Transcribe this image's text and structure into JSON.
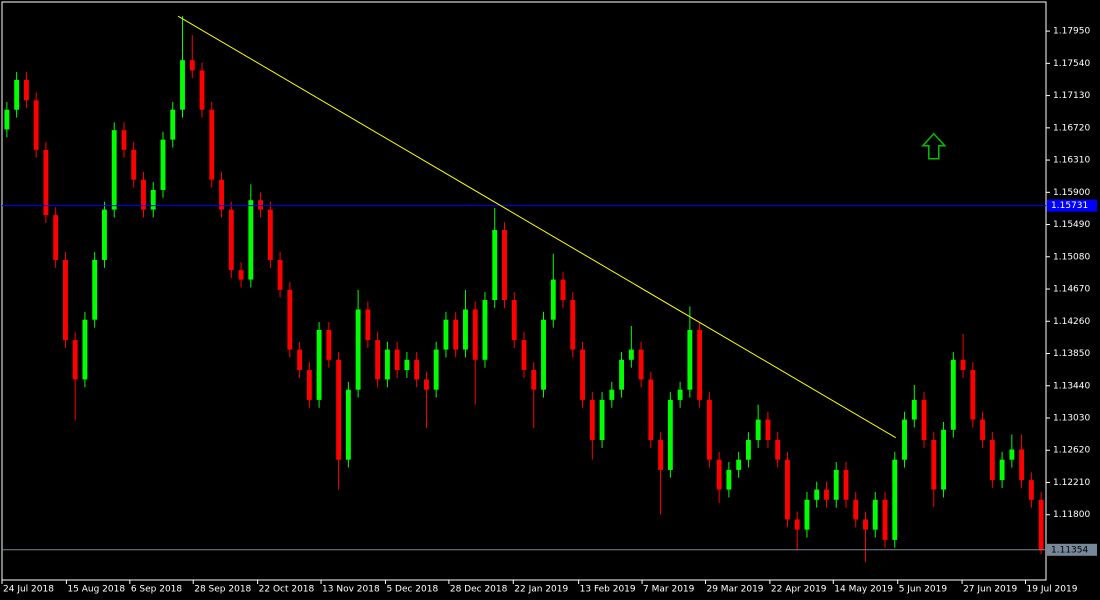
{
  "chart_data": {
    "type": "candlestick",
    "open": [
      1.167,
      1.1695,
      1.1733,
      1.1707,
      1.1644,
      1.1561,
      1.1504,
      1.1402,
      1.1352,
      1.1428,
      1.1504,
      1.1568,
      1.1669,
      1.1644,
      1.1606,
      1.1568,
      1.1593,
      1.1657,
      1.1695,
      1.1758,
      1.1745,
      1.1695,
      1.1606,
      1.1568,
      1.1491,
      1.1479,
      1.158,
      1.1568,
      1.1504,
      1.1466,
      1.139,
      1.1364,
      1.1326,
      1.1415,
      1.1377,
      1.125,
      1.1339,
      1.1441,
      1.1402,
      1.1352,
      1.139,
      1.1364,
      1.1377,
      1.1352,
      1.1339,
      1.139,
      1.1428,
      1.139,
      1.1441,
      1.1377,
      1.1453,
      1.1542,
      1.1453,
      1.1402,
      1.1364,
      1.1339,
      1.1428,
      1.1479,
      1.1453,
      1.139,
      1.1326,
      1.1275,
      1.1326,
      1.1339,
      1.1377,
      1.139,
      1.1352,
      1.1275,
      1.1237,
      1.1326,
      1.1339,
      1.1415,
      1.1326,
      1.125,
      1.1212,
      1.1237,
      1.125,
      1.1275,
      1.1301,
      1.1275,
      1.125,
      1.1174,
      1.1161,
      1.1199,
      1.1212,
      1.1199,
      1.1237,
      1.1199,
      1.1174,
      1.1161,
      1.1199,
      1.1148,
      1.125,
      1.1301,
      1.1326,
      1.1275,
      1.1212,
      1.1288,
      1.1377,
      1.1364,
      1.1301,
      1.1275,
      1.1224,
      1.125,
      1.1263,
      1.1224,
      1.1199
    ],
    "high": [
      1.1705,
      1.1743,
      1.1743,
      1.1717,
      1.1654,
      1.1571,
      1.1514,
      1.1412,
      1.1438,
      1.1514,
      1.1578,
      1.1679,
      1.1679,
      1.1654,
      1.1616,
      1.1603,
      1.1667,
      1.1705,
      1.1814,
      1.179,
      1.1755,
      1.1705,
      1.1616,
      1.1578,
      1.1501,
      1.16,
      1.159,
      1.1578,
      1.1514,
      1.1476,
      1.14,
      1.1374,
      1.1425,
      1.1425,
      1.1387,
      1.1349,
      1.1466,
      1.1451,
      1.1412,
      1.14,
      1.14,
      1.1387,
      1.1387,
      1.1362,
      1.14,
      1.1438,
      1.1438,
      1.1466,
      1.1451,
      1.1463,
      1.157,
      1.1552,
      1.1463,
      1.1412,
      1.1374,
      1.1438,
      1.1512,
      1.1489,
      1.1463,
      1.14,
      1.1336,
      1.1336,
      1.1349,
      1.1387,
      1.142,
      1.14,
      1.1362,
      1.1285,
      1.1336,
      1.1349,
      1.1445,
      1.1425,
      1.1336,
      1.126,
      1.1247,
      1.126,
      1.1285,
      1.132,
      1.1311,
      1.1285,
      1.126,
      1.1184,
      1.1209,
      1.1222,
      1.1222,
      1.1247,
      1.1247,
      1.1209,
      1.1184,
      1.1209,
      1.1209,
      1.126,
      1.1311,
      1.1345,
      1.1336,
      1.1285,
      1.1298,
      1.1387,
      1.141,
      1.1374,
      1.1311,
      1.1285,
      1.126,
      1.1282,
      1.1282,
      1.1234,
      1.1209
    ],
    "low": [
      1.166,
      1.1685,
      1.1697,
      1.1634,
      1.1551,
      1.1494,
      1.1392,
      1.13,
      1.1342,
      1.1418,
      1.1494,
      1.1558,
      1.1634,
      1.1596,
      1.1558,
      1.1558,
      1.1583,
      1.1647,
      1.1685,
      1.1735,
      1.1685,
      1.1596,
      1.1558,
      1.1481,
      1.1469,
      1.1469,
      1.1558,
      1.1494,
      1.1456,
      1.138,
      1.1354,
      1.1316,
      1.1316,
      1.1367,
      1.1212,
      1.124,
      1.1329,
      1.1392,
      1.1342,
      1.1342,
      1.1354,
      1.1354,
      1.1342,
      1.129,
      1.1329,
      1.138,
      1.138,
      1.138,
      1.132,
      1.1367,
      1.1443,
      1.1443,
      1.1392,
      1.1354,
      1.129,
      1.1329,
      1.1418,
      1.1443,
      1.138,
      1.1316,
      1.125,
      1.1265,
      1.1316,
      1.1329,
      1.1367,
      1.1342,
      1.1265,
      1.118,
      1.1227,
      1.1316,
      1.1329,
      1.1316,
      1.124,
      1.1195,
      1.1202,
      1.1227,
      1.124,
      1.1265,
      1.1265,
      1.124,
      1.1164,
      1.1135,
      1.1151,
      1.1189,
      1.1189,
      1.1189,
      1.1189,
      1.1164,
      1.112,
      1.1151,
      1.1138,
      1.1138,
      1.124,
      1.1291,
      1.1265,
      1.119,
      1.1202,
      1.1278,
      1.1354,
      1.1291,
      1.1265,
      1.1214,
      1.1214,
      1.124,
      1.1214,
      1.1189,
      1.113
    ],
    "close": [
      1.1695,
      1.1733,
      1.1707,
      1.1644,
      1.1561,
      1.1504,
      1.1402,
      1.1352,
      1.1428,
      1.1504,
      1.1568,
      1.1669,
      1.1644,
      1.1606,
      1.1568,
      1.1593,
      1.1657,
      1.1695,
      1.1758,
      1.1745,
      1.1695,
      1.1606,
      1.1568,
      1.1491,
      1.1479,
      1.158,
      1.1568,
      1.1504,
      1.1466,
      1.139,
      1.1364,
      1.1326,
      1.1415,
      1.1377,
      1.125,
      1.1339,
      1.1441,
      1.1402,
      1.1352,
      1.139,
      1.1364,
      1.1377,
      1.1352,
      1.1339,
      1.139,
      1.1428,
      1.139,
      1.1441,
      1.1377,
      1.1453,
      1.1542,
      1.1453,
      1.1402,
      1.1364,
      1.1339,
      1.1428,
      1.1479,
      1.1453,
      1.139,
      1.1326,
      1.1275,
      1.1326,
      1.1339,
      1.1377,
      1.139,
      1.1352,
      1.1275,
      1.1237,
      1.1326,
      1.1339,
      1.1415,
      1.1326,
      1.125,
      1.1212,
      1.1237,
      1.125,
      1.1275,
      1.1301,
      1.1275,
      1.125,
      1.1174,
      1.1161,
      1.1199,
      1.1212,
      1.1199,
      1.1237,
      1.1199,
      1.1174,
      1.1161,
      1.1199,
      1.1148,
      1.125,
      1.1301,
      1.1326,
      1.1275,
      1.1212,
      1.1288,
      1.1377,
      1.1364,
      1.1301,
      1.1275,
      1.1224,
      1.125,
      1.1263,
      1.1224,
      1.1199,
      1.1135
    ],
    "up_color": "#00ff00",
    "down_color": "#ff0000",
    "xlim": [
      0,
      107
    ],
    "xticks": [
      {
        "value": 0,
        "label": "24 Jul 2018"
      },
      {
        "value": 6.6,
        "label": "15 Aug 2018"
      },
      {
        "value": 13.1,
        "label": "6 Sep 2018"
      },
      {
        "value": 19.6,
        "label": "28 Sep 2018"
      },
      {
        "value": 26.2,
        "label": "22 Oct 2018"
      },
      {
        "value": 32.7,
        "label": "13 Nov 2018"
      },
      {
        "value": 39.3,
        "label": "5 Dec 2018"
      },
      {
        "value": 45.8,
        "label": "28 Dec 2018"
      },
      {
        "value": 52.4,
        "label": "22 Jan 2019"
      },
      {
        "value": 59.1,
        "label": "13 Feb 2019"
      },
      {
        "value": 65.6,
        "label": "7 Mar 2019"
      },
      {
        "value": 72.1,
        "label": "29 Mar 2019"
      },
      {
        "value": 78.7,
        "label": "22 Apr 2019"
      },
      {
        "value": 85.2,
        "label": "14 May 2019"
      },
      {
        "value": 91.8,
        "label": "5 Jun 2019"
      },
      {
        "value": 98.4,
        "label": "27 Jun 2019"
      },
      {
        "value": 104.9,
        "label": "19 Jul 2019"
      }
    ],
    "ylim": [
      1.1097,
      1.1832
    ],
    "yticks": [
      {
        "value": 1.1795,
        "label": "1.17950"
      },
      {
        "value": 1.1754,
        "label": "1.17540"
      },
      {
        "value": 1.1713,
        "label": "1.17130"
      },
      {
        "value": 1.1672,
        "label": "1.16720"
      },
      {
        "value": 1.1631,
        "label": "1.16310"
      },
      {
        "value": 1.159,
        "label": "1.15900"
      },
      {
        "value": 1.1549,
        "label": "1.15490"
      },
      {
        "value": 1.1508,
        "label": "1.15080"
      },
      {
        "value": 1.1467,
        "label": "1.14670"
      },
      {
        "value": 1.1426,
        "label": "1.14260"
      },
      {
        "value": 1.1385,
        "label": "1.13850"
      },
      {
        "value": 1.1344,
        "label": "1.13440"
      },
      {
        "value": 1.1303,
        "label": "1.13030"
      },
      {
        "value": 1.1262,
        "label": "1.12620"
      },
      {
        "value": 1.1221,
        "label": "1.12210"
      },
      {
        "value": 1.118,
        "label": "1.11800"
      }
    ],
    "hlines": [
      {
        "value": 1.15731,
        "label": "1.15731",
        "color": "#0000ff"
      },
      {
        "value": 1.11354,
        "label": "1.11354",
        "color": "#778899"
      }
    ],
    "trendline": {
      "x": [
        18.05,
        91.6
      ],
      "y": [
        1.1814,
        1.1278
      ],
      "color": "#ffff00"
    },
    "arrow": {
      "x": 95.5,
      "y": 1.1648,
      "color": "#00c000"
    }
  }
}
